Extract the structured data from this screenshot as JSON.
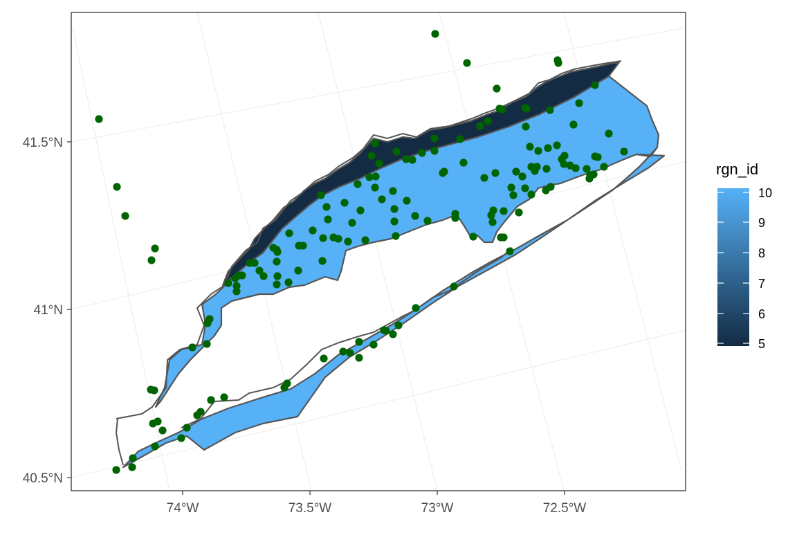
{
  "map": {
    "y_ticks": [
      "41.5°N",
      "41°N",
      "40.5°N"
    ],
    "x_ticks": [
      "74°W",
      "73.5°W",
      "73°W",
      "72.5°W"
    ],
    "colors": {
      "region_light": "#56b1f7",
      "region_dark": "#132b43",
      "outline": "#555555",
      "points": "#006400",
      "panel_border": "#333333",
      "grid": "#ebebeb"
    },
    "legend": {
      "title": "rgn_id",
      "labels": [
        "10",
        "9",
        "8",
        "7",
        "6",
        "5"
      ],
      "gradient_top": "#56b1f7",
      "gradient_bottom": "#132b43"
    },
    "regions": [
      {
        "rgn_id": 5,
        "fill": "#132b43"
      },
      {
        "rgn_id": 10,
        "fill": "#56b1f7"
      }
    ],
    "points_count": 150
  }
}
